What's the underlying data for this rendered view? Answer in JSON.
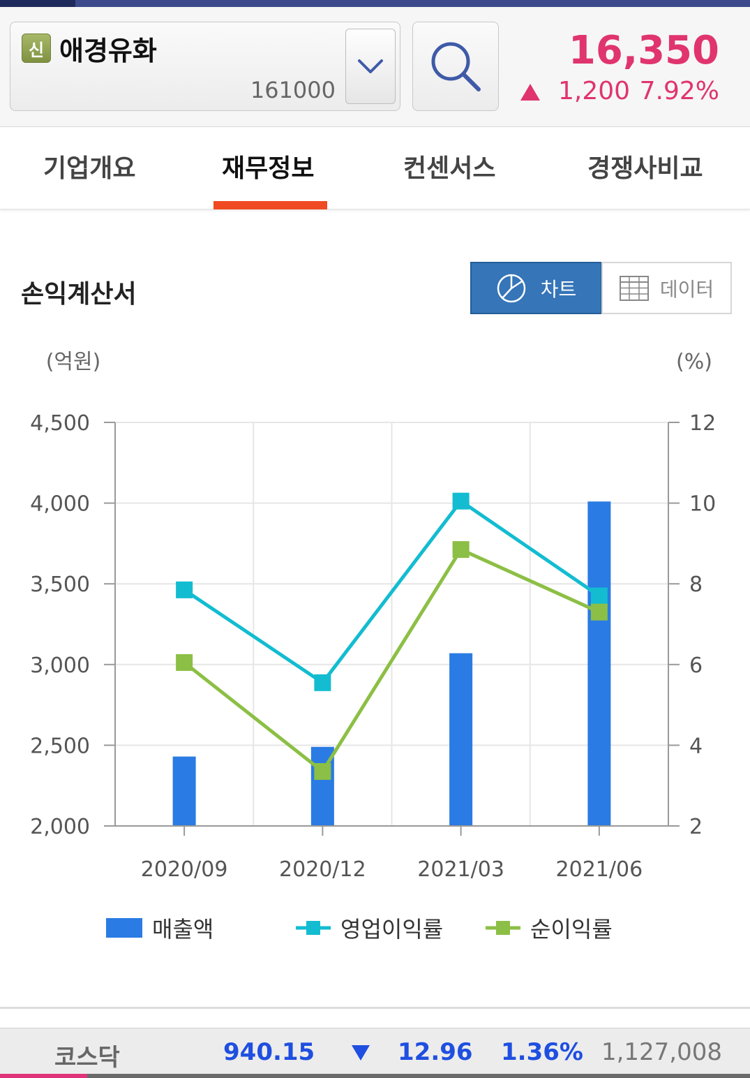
{
  "header": {
    "badge": "신",
    "stock_name": "애경유화",
    "stock_code": "161000",
    "price": "16,350",
    "change": "1,200",
    "change_pct": "7.92%"
  },
  "tabs": [
    {
      "label": "기업개요",
      "active": false
    },
    {
      "label": "재무정보",
      "active": true
    },
    {
      "label": "컨센서스",
      "active": false
    },
    {
      "label": "경쟁사비교",
      "active": false
    }
  ],
  "section": {
    "title": "손익계산서",
    "toggle_chart_label": "차트",
    "toggle_data_label": "데이터"
  },
  "colors": {
    "accent_red": "#e0346f",
    "tab_indicator": "#f04a22",
    "bar": "#2a7be4",
    "op_margin": "#13bcd0",
    "net_margin": "#8cbf45",
    "index_blue": "#1f4fe0"
  },
  "chart_data": {
    "type": "bar",
    "categories": [
      "2020/09",
      "2020/12",
      "2021/03",
      "2021/06"
    ],
    "left_unit": "(억원)",
    "right_unit": "(%)",
    "left_ylim": [
      2000,
      4500
    ],
    "right_ylim": [
      2,
      12
    ],
    "left_ticks": [
      "4,500",
      "4,000",
      "3,500",
      "3,000",
      "2,500",
      "2,000"
    ],
    "right_ticks": [
      "12",
      "10",
      "8",
      "6",
      "4",
      "2"
    ],
    "grid": true,
    "legend_position": "bottom",
    "series": [
      {
        "name": "매출액",
        "type": "bar",
        "axis": "left",
        "values": [
          2430,
          2490,
          3070,
          4010
        ]
      },
      {
        "name": "영업이익률",
        "type": "line",
        "axis": "right",
        "values": [
          7.85,
          5.55,
          10.05,
          7.7
        ]
      },
      {
        "name": "순이익률",
        "type": "line",
        "axis": "right",
        "values": [
          6.05,
          3.35,
          8.85,
          7.3
        ]
      }
    ]
  },
  "index_bar": {
    "name": "코스닥",
    "value": "940.15",
    "change": "12.96",
    "change_pct": "1.36%",
    "volume": "1,127,008"
  }
}
